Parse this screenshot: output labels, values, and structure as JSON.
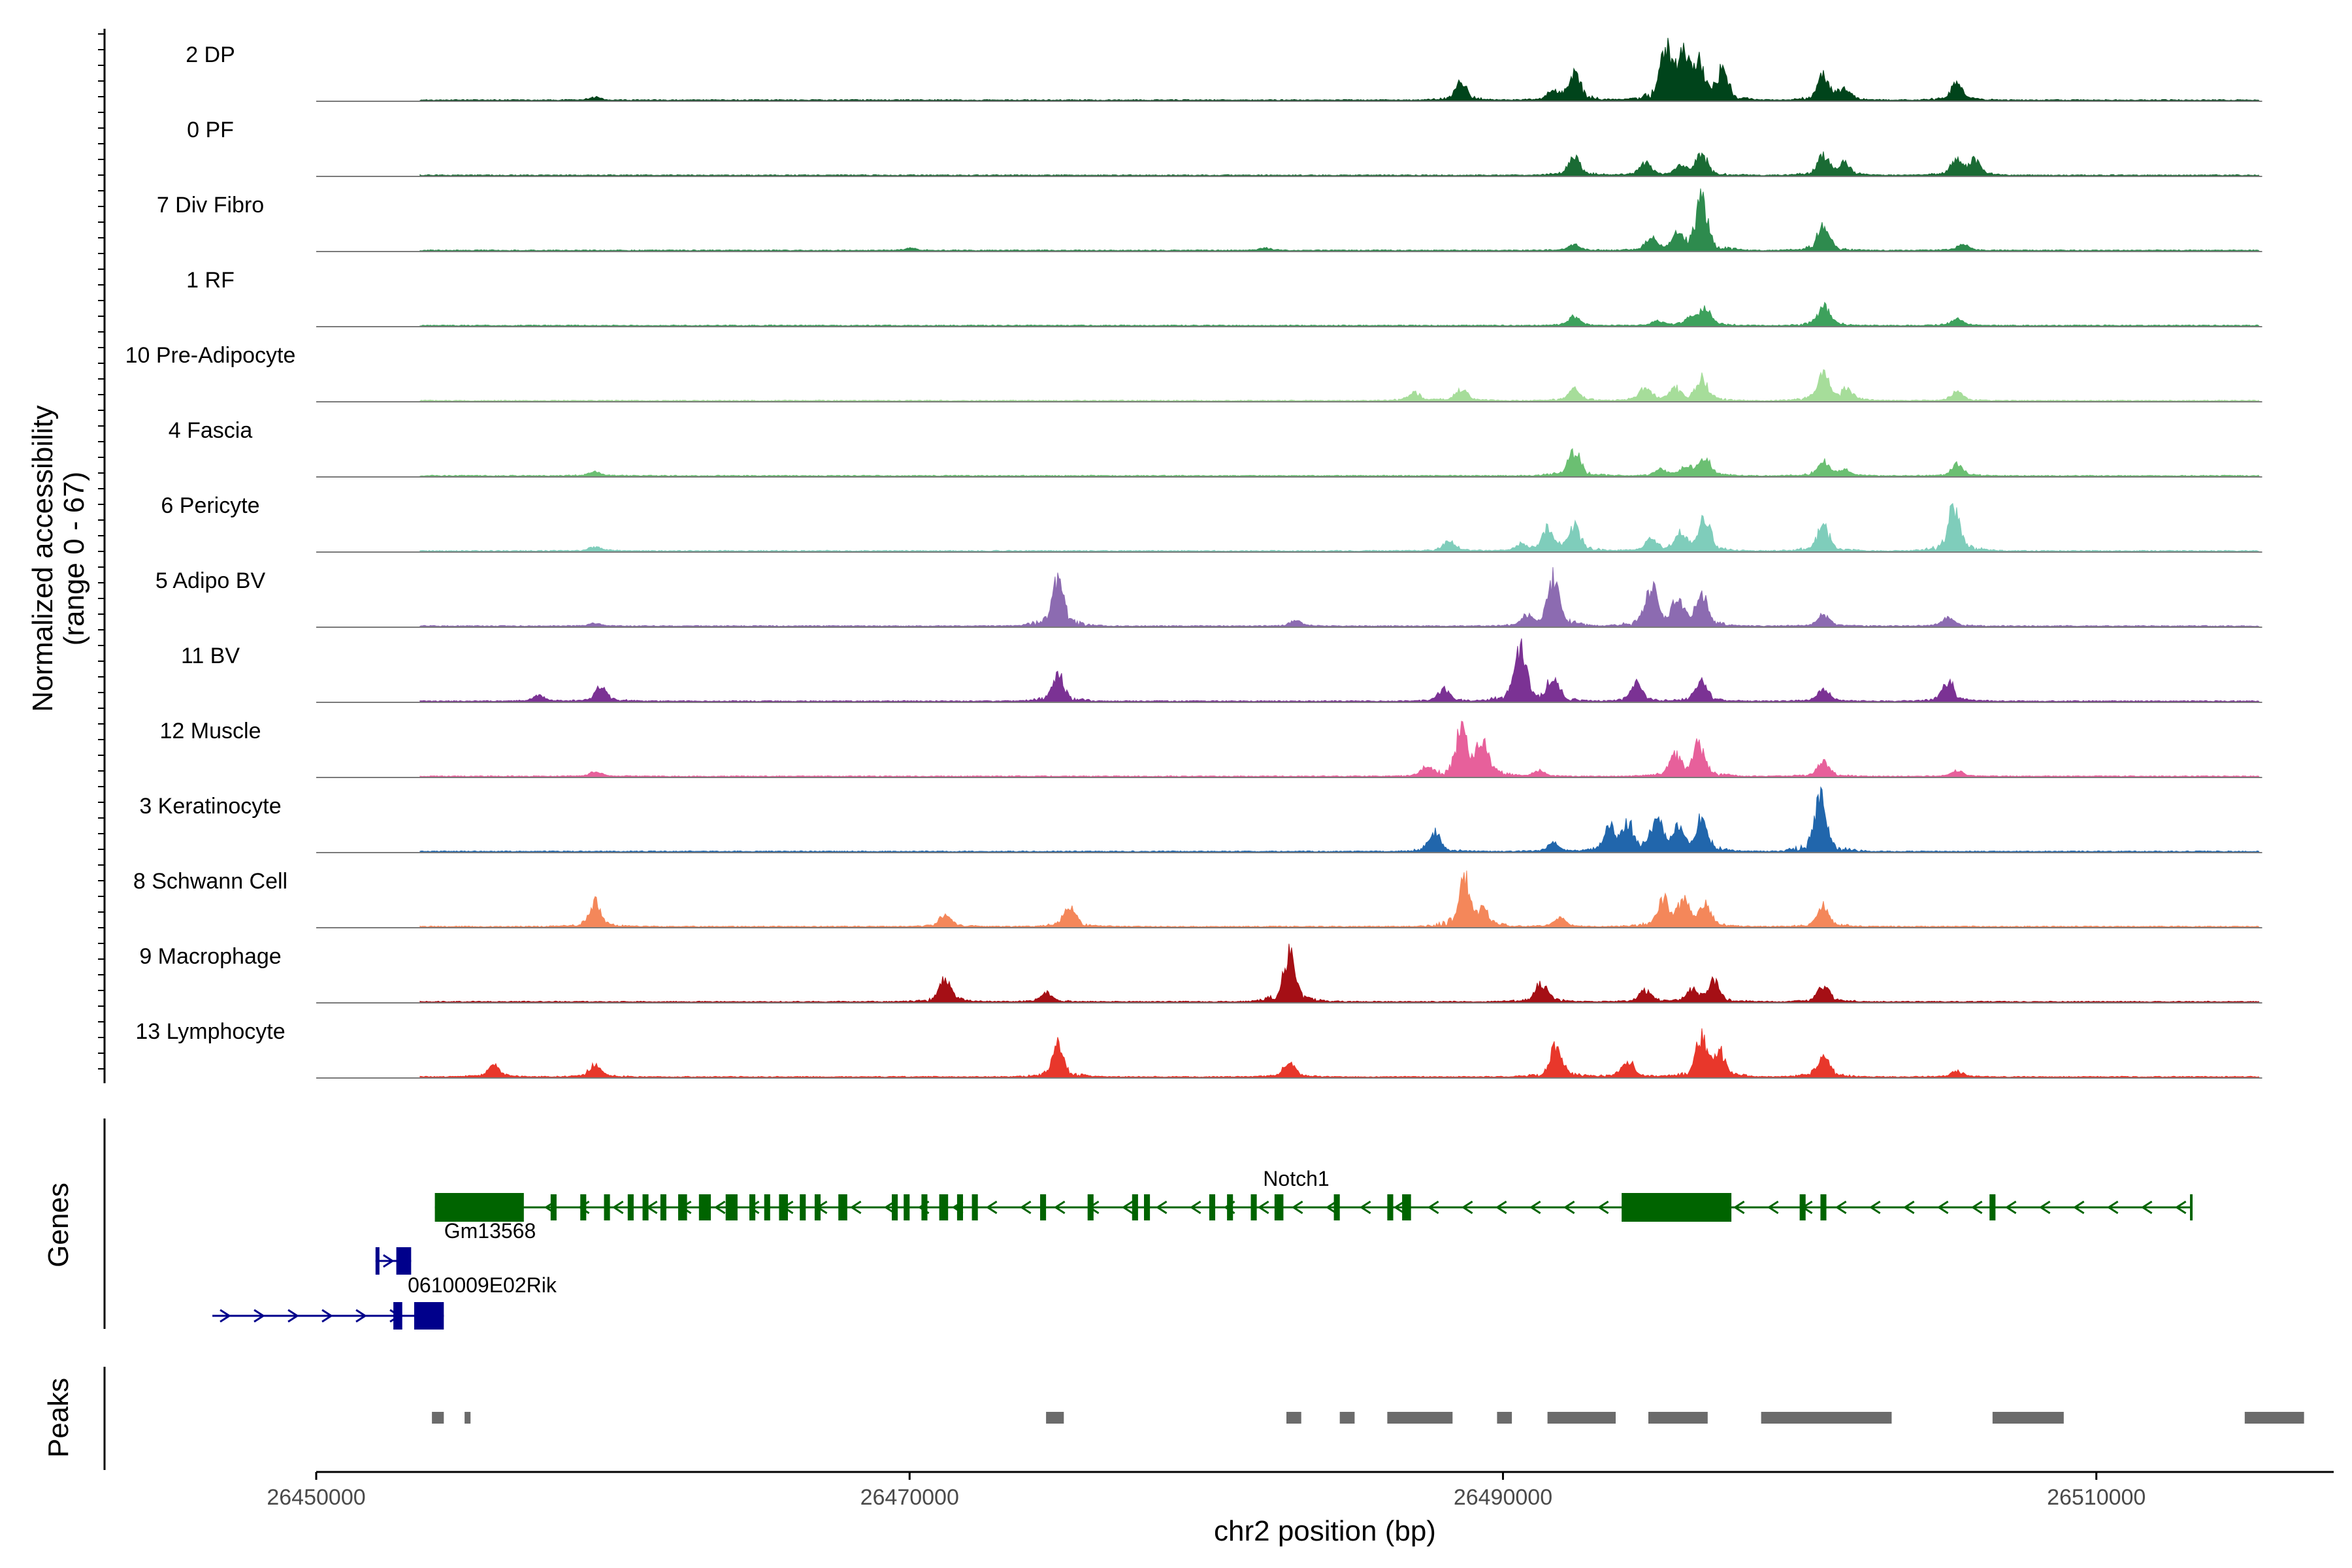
{
  "chart_data": {
    "type": "area",
    "subtype": "genome-coverage-track",
    "title": "",
    "ylabel_line1": "Normalized accessibility",
    "ylabel_line2": "(range 0 - 67)",
    "yrange": [
      0,
      67
    ],
    "xlabel": "chr2 position (bp)",
    "xlim": [
      26450000,
      26518000
    ],
    "xticks": [
      26450000,
      26470000,
      26490000,
      26510000
    ],
    "xtick_labels": [
      "26450000",
      "26470000",
      "26490000",
      "26510000"
    ],
    "coverage_start": 26453500,
    "coverage_end": 26515500,
    "panel_labels": {
      "genes": "Genes",
      "peaks": "Peaks"
    },
    "tracks": [
      {
        "name": "2 DP",
        "color": "#00441b",
        "peaks": [
          [
            26459400,
            0.05
          ],
          [
            26488600,
            0.3
          ],
          [
            26491700,
            0.15
          ],
          [
            26492400,
            0.5
          ],
          [
            26495500,
            0.9
          ],
          [
            26496100,
            0.75
          ],
          [
            26496600,
            0.55
          ],
          [
            26497400,
            0.5
          ],
          [
            26500800,
            0.4
          ],
          [
            26501500,
            0.2
          ],
          [
            26505300,
            0.3
          ]
        ]
      },
      {
        "name": "0 PF",
        "color": "#1a6b34",
        "peaks": [
          [
            26492400,
            0.3
          ],
          [
            26494800,
            0.2
          ],
          [
            26496000,
            0.15
          ],
          [
            26496700,
            0.35
          ],
          [
            26500800,
            0.35
          ],
          [
            26501500,
            0.2
          ],
          [
            26505300,
            0.3
          ],
          [
            26505900,
            0.25
          ]
        ]
      },
      {
        "name": "7 Div Fibro",
        "color": "#2e8b4e",
        "peaks": [
          [
            26470000,
            0.04
          ],
          [
            26482000,
            0.04
          ],
          [
            26492400,
            0.1
          ],
          [
            26495000,
            0.2
          ],
          [
            26495900,
            0.3
          ],
          [
            26496700,
            0.9
          ],
          [
            26500800,
            0.45
          ],
          [
            26505500,
            0.1
          ]
        ]
      },
      {
        "name": "1 RF",
        "color": "#3da15c",
        "peaks": [
          [
            26492400,
            0.15
          ],
          [
            26495200,
            0.08
          ],
          [
            26496300,
            0.1
          ],
          [
            26496800,
            0.3
          ],
          [
            26500800,
            0.35
          ],
          [
            26505300,
            0.12
          ]
        ]
      },
      {
        "name": "10 Pre-Adipocyte",
        "color": "#a6dd9a",
        "peaks": [
          [
            26487000,
            0.15
          ],
          [
            26488600,
            0.2
          ],
          [
            26492400,
            0.2
          ],
          [
            26494800,
            0.25
          ],
          [
            26495800,
            0.2
          ],
          [
            26496700,
            0.4
          ],
          [
            26500800,
            0.5
          ],
          [
            26501600,
            0.2
          ],
          [
            26505300,
            0.15
          ]
        ]
      },
      {
        "name": "4 Fascia",
        "color": "#6bbf72",
        "peaks": [
          [
            26459400,
            0.08
          ],
          [
            26492400,
            0.45
          ],
          [
            26495300,
            0.1
          ],
          [
            26496200,
            0.15
          ],
          [
            26496800,
            0.3
          ],
          [
            26500800,
            0.25
          ],
          [
            26501500,
            0.1
          ],
          [
            26505300,
            0.2
          ]
        ]
      },
      {
        "name": "6 Pericyte",
        "color": "#7fcdbb",
        "peaks": [
          [
            26459400,
            0.08
          ],
          [
            26488200,
            0.2
          ],
          [
            26490600,
            0.1
          ],
          [
            26491500,
            0.4
          ],
          [
            26492400,
            0.45
          ],
          [
            26495000,
            0.2
          ],
          [
            26496000,
            0.3
          ],
          [
            26496800,
            0.55
          ],
          [
            26500800,
            0.45
          ],
          [
            26505200,
            0.8
          ]
        ]
      },
      {
        "name": "5 Adipo BV",
        "color": "#8c6bb1",
        "peaks": [
          [
            26459400,
            0.05
          ],
          [
            26475000,
            0.85
          ],
          [
            26483000,
            0.1
          ],
          [
            26490800,
            0.15
          ],
          [
            26491700,
            0.85
          ],
          [
            26495000,
            0.7
          ],
          [
            26495900,
            0.4
          ],
          [
            26496700,
            0.55
          ],
          [
            26500800,
            0.2
          ],
          [
            26505000,
            0.15
          ]
        ]
      },
      {
        "name": "11 BV",
        "color": "#7b3294",
        "peaks": [
          [
            26457500,
            0.1
          ],
          [
            26459600,
            0.25
          ],
          [
            26475000,
            0.45
          ],
          [
            26488000,
            0.2
          ],
          [
            26490600,
            0.9
          ],
          [
            26491700,
            0.4
          ],
          [
            26494500,
            0.3
          ],
          [
            26496700,
            0.35
          ],
          [
            26500800,
            0.2
          ],
          [
            26505000,
            0.35
          ]
        ]
      },
      {
        "name": "12 Muscle",
        "color": "#e7609b",
        "peaks": [
          [
            26459400,
            0.08
          ],
          [
            26487400,
            0.15
          ],
          [
            26488600,
            0.8
          ],
          [
            26489300,
            0.65
          ],
          [
            26491200,
            0.1
          ],
          [
            26495800,
            0.35
          ],
          [
            26496600,
            0.55
          ],
          [
            26500800,
            0.25
          ],
          [
            26505300,
            0.1
          ]
        ]
      },
      {
        "name": "3 Keratinocyte",
        "color": "#2166ac",
        "peaks": [
          [
            26487700,
            0.35
          ],
          [
            26491700,
            0.15
          ],
          [
            26493600,
            0.4
          ],
          [
            26494200,
            0.45
          ],
          [
            26495200,
            0.55
          ],
          [
            26495900,
            0.4
          ],
          [
            26496700,
            0.55
          ],
          [
            26500700,
            0.95
          ]
        ]
      },
      {
        "name": "8 Schwann Cell",
        "color": "#f4875a",
        "peaks": [
          [
            26459400,
            0.4
          ],
          [
            26471200,
            0.2
          ],
          [
            26475400,
            0.35
          ],
          [
            26488700,
            0.85
          ],
          [
            26489300,
            0.3
          ],
          [
            26491900,
            0.15
          ],
          [
            26495400,
            0.45
          ],
          [
            26496100,
            0.45
          ],
          [
            26496800,
            0.4
          ],
          [
            26500800,
            0.35
          ]
        ]
      },
      {
        "name": "9 Macrophage",
        "color": "#a50f15",
        "peaks": [
          [
            26471200,
            0.4
          ],
          [
            26474600,
            0.15
          ],
          [
            26482800,
            0.85
          ],
          [
            26491300,
            0.35
          ],
          [
            26494800,
            0.2
          ],
          [
            26496400,
            0.2
          ],
          [
            26497100,
            0.35
          ],
          [
            26500800,
            0.3
          ]
        ]
      },
      {
        "name": "13 Lymphocyte",
        "color": "#e8372b",
        "peaks": [
          [
            26456000,
            0.2
          ],
          [
            26459400,
            0.2
          ],
          [
            26475000,
            0.55
          ],
          [
            26482800,
            0.25
          ],
          [
            26491800,
            0.55
          ],
          [
            26494200,
            0.3
          ],
          [
            26496700,
            0.65
          ],
          [
            26497300,
            0.4
          ],
          [
            26500800,
            0.4
          ],
          [
            26505300,
            0.1
          ]
        ]
      }
    ],
    "genes": [
      {
        "name": "Notch1",
        "strand": "-",
        "color": "#006400",
        "start": 26454000,
        "end": 26513200,
        "row": 0,
        "exons": [
          [
            26454000,
            26457000
          ],
          [
            26457900,
            26458100
          ],
          [
            26458900,
            26459100
          ],
          [
            26459700,
            26459900
          ],
          [
            26460500,
            26460700
          ],
          [
            26461000,
            26461200
          ],
          [
            26461600,
            26461800
          ],
          [
            26462200,
            26462500
          ],
          [
            26462900,
            26463300
          ],
          [
            26463800,
            26464200
          ],
          [
            26464600,
            26464800
          ],
          [
            26465100,
            26465300
          ],
          [
            26465600,
            26465900
          ],
          [
            26466300,
            26466500
          ],
          [
            26466800,
            26467000
          ],
          [
            26467600,
            26467900
          ],
          [
            26469400,
            26469600
          ],
          [
            26469800,
            26470000
          ],
          [
            26470400,
            26470600
          ],
          [
            26471000,
            26471300
          ],
          [
            26471600,
            26471800
          ],
          [
            26472100,
            26472300
          ],
          [
            26474400,
            26474600
          ],
          [
            26476000,
            26476200
          ],
          [
            26477500,
            26477700
          ],
          [
            26477900,
            26478100
          ],
          [
            26480100,
            26480300
          ],
          [
            26480700,
            26480900
          ],
          [
            26481500,
            26481700
          ],
          [
            26482300,
            26482600
          ],
          [
            26484300,
            26484500
          ],
          [
            26486100,
            26486300
          ],
          [
            26486600,
            26486900
          ],
          [
            26494000,
            26497700
          ],
          [
            26500000,
            26500200
          ],
          [
            26500700,
            26500900
          ],
          [
            26506400,
            26506600
          ]
        ]
      },
      {
        "name": "Gm13568",
        "strand": "+",
        "color": "#00008b",
        "start": 26452000,
        "end": 26453200,
        "row": 1,
        "exons": [
          [
            26452000,
            26452050
          ],
          [
            26452700,
            26453200
          ]
        ]
      },
      {
        "name": "0610009E02Rik",
        "strand": "+",
        "color": "#00008b",
        "start": 26446500,
        "end": 26454300,
        "row": 2,
        "exons": [
          [
            26452600,
            26452900
          ],
          [
            26453300,
            26454300
          ]
        ]
      }
    ],
    "peaks_track": [
      [
        26453900,
        26454300
      ],
      [
        26455000,
        26455200
      ],
      [
        26474600,
        26475200
      ],
      [
        26482700,
        26483200
      ],
      [
        26484500,
        26485000
      ],
      [
        26486100,
        26488300
      ],
      [
        26489800,
        26490300
      ],
      [
        26491500,
        26493800
      ],
      [
        26494900,
        26496900
      ],
      [
        26498700,
        26503100
      ],
      [
        26506500,
        26508900
      ],
      [
        26515000,
        26517000
      ]
    ]
  }
}
